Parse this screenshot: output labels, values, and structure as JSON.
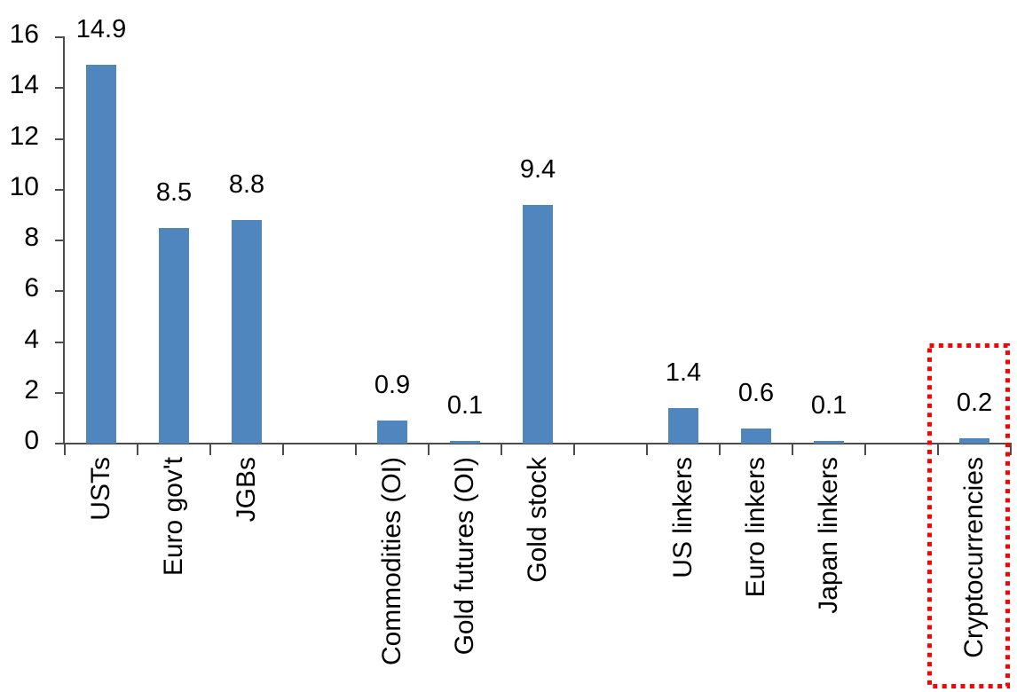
{
  "chart_data": {
    "type": "bar",
    "title": "",
    "xlabel": "",
    "ylabel": "",
    "categories": [
      "USTs",
      "Euro gov't",
      "JGBs",
      "",
      "Commodities (OI)",
      "Gold futures (OI)",
      "Gold stock",
      "",
      "US linkers",
      "Euro linkers",
      "Japan linkers",
      "",
      "Cryptocurrencies"
    ],
    "values": [
      14.9,
      8.5,
      8.8,
      null,
      0.9,
      0.1,
      9.4,
      null,
      1.4,
      0.6,
      0.1,
      null,
      0.2
    ],
    "bar_labels": [
      "14.9",
      "8.5",
      "8.8",
      "",
      "0.9",
      "0.1",
      "9.4",
      "",
      "1.4",
      "0.6",
      "0.1",
      "",
      "0.2"
    ],
    "yticks": [
      0,
      2,
      4,
      6,
      8,
      10,
      12,
      14,
      16
    ],
    "ylim": [
      0,
      16
    ],
    "grid": false,
    "legend": "none",
    "annotations": [
      {
        "type": "dotted-rectangle",
        "target_category": "Cryptocurrencies",
        "purpose": "highlight"
      }
    ],
    "colors": {
      "bar": "#4E86BD",
      "axis": "#4D4D4D",
      "text": "#000000",
      "highlight": "#FF0000",
      "background": "#FFFFFF"
    }
  }
}
